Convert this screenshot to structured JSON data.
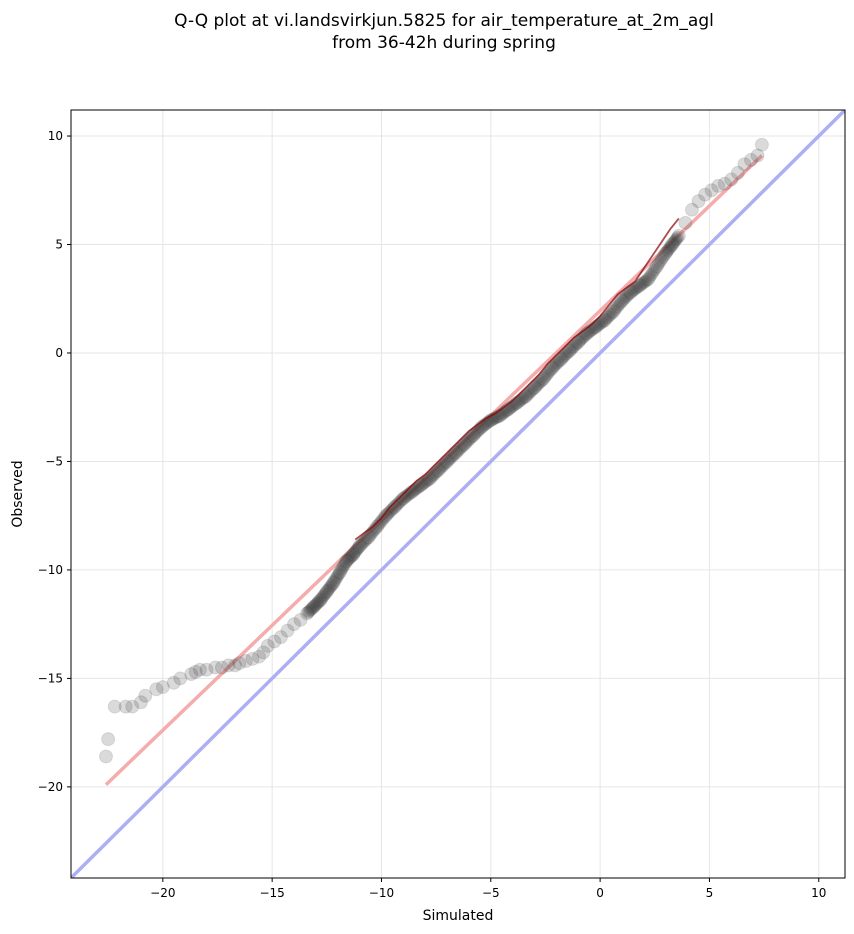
{
  "chart_data": {
    "type": "scatter",
    "title": "Q-Q plot at vi.landsvirkjun.5825 for air_temperature_at_2m_agl",
    "subtitle": "from 36-42h during spring",
    "xlabel": "Simulated",
    "ylabel": "Observed",
    "xlim": [
      -24.2,
      11.2
    ],
    "ylim": [
      -24.2,
      11.2
    ],
    "xticks": [
      -20,
      -15,
      -10,
      -5,
      0,
      5,
      10
    ],
    "yticks": [
      -20,
      -15,
      -10,
      -5,
      0,
      5,
      10
    ],
    "xtick_labels": [
      "−20",
      "−15",
      "−10",
      "−5",
      "0",
      "5",
      "10"
    ],
    "ytick_labels": [
      "−20",
      "−15",
      "−10",
      "−5",
      "0",
      "5",
      "10"
    ],
    "grid": true,
    "identity_line": {
      "from": [
        -24.2,
        -24.2
      ],
      "to": [
        11.2,
        11.2
      ],
      "color": "#aaaaf5"
    },
    "fit_line": {
      "from": [
        -22.6,
        -19.9
      ],
      "to": [
        7.4,
        9.1
      ],
      "color": "#f5a8a8"
    },
    "quantile_curve": {
      "x": [
        -11.2,
        -10.8,
        -10.4,
        -10.0,
        -9.6,
        -9.2,
        -8.8,
        -8.4,
        -8.0,
        -7.6,
        -7.2,
        -6.8,
        -6.4,
        -6.0,
        -5.6,
        -5.2,
        -4.8,
        -4.4,
        -4.0,
        -3.6,
        -3.2,
        -2.8,
        -2.4,
        -2.0,
        -1.6,
        -1.2,
        -0.8,
        -0.4,
        0.0,
        0.4,
        0.8,
        1.2,
        1.6,
        2.0,
        2.4,
        2.8,
        3.2,
        3.6
      ],
      "y": [
        -8.6,
        -8.3,
        -8.0,
        -7.6,
        -7.1,
        -6.7,
        -6.3,
        -5.9,
        -5.6,
        -5.2,
        -4.8,
        -4.4,
        -4.0,
        -3.6,
        -3.3,
        -3.0,
        -2.8,
        -2.5,
        -2.2,
        -1.8,
        -1.4,
        -1.0,
        -0.5,
        -0.1,
        0.3,
        0.7,
        1.0,
        1.3,
        1.7,
        2.2,
        2.7,
        3.0,
        3.3,
        3.9,
        4.5,
        5.1,
        5.7,
        6.2
      ],
      "color": "#8b0000"
    },
    "series": [
      {
        "x": [
          -22.6,
          -22.5,
          -22.2,
          -21.7,
          -21.4,
          -21.0,
          -20.8,
          -20.3,
          -20.0,
          -19.5,
          -19.2,
          -18.7,
          -18.5,
          -18.3,
          -18.0,
          -17.6,
          -17.3,
          -17.0,
          -16.7,
          -16.5,
          -16.2,
          -15.9,
          -15.6,
          -15.4,
          -15.2,
          -14.9,
          -14.6,
          -14.3,
          -14.0,
          -13.7,
          -13.4,
          -13.1,
          -12.8,
          -12.5,
          -12.2,
          -11.9,
          -11.6,
          -11.3,
          -11.0,
          -10.6,
          -10.2,
          -9.8,
          -9.4,
          -9.0,
          -8.6,
          -8.2,
          -7.8,
          -7.4,
          -7.0,
          -6.6,
          -6.2,
          -5.8,
          -5.4,
          -5.0,
          -4.6,
          -4.2,
          -3.8,
          -3.4,
          -3.0,
          -2.6,
          -2.2,
          -1.8,
          -1.4,
          -1.0,
          -0.6,
          -0.2,
          0.2,
          0.6,
          1.0,
          1.4,
          1.8,
          2.2,
          2.6,
          3.0,
          3.3,
          3.6,
          3.9,
          4.2,
          4.5,
          4.8,
          5.1,
          5.4,
          5.7,
          6.0,
          6.3,
          6.6,
          6.9,
          7.2,
          7.4
        ],
        "y": [
          -18.6,
          -17.8,
          -16.3,
          -16.3,
          -16.3,
          -16.1,
          -15.8,
          -15.5,
          -15.4,
          -15.2,
          -15.0,
          -14.8,
          -14.7,
          -14.6,
          -14.6,
          -14.5,
          -14.5,
          -14.4,
          -14.4,
          -14.3,
          -14.2,
          -14.1,
          -14.0,
          -13.8,
          -13.5,
          -13.3,
          -13.1,
          -12.8,
          -12.5,
          -12.3,
          -12.0,
          -11.7,
          -11.4,
          -11.0,
          -10.6,
          -10.1,
          -9.6,
          -9.3,
          -8.9,
          -8.5,
          -8.0,
          -7.5,
          -7.1,
          -6.7,
          -6.4,
          -6.1,
          -5.8,
          -5.4,
          -5.0,
          -4.6,
          -4.2,
          -3.8,
          -3.4,
          -3.1,
          -2.9,
          -2.6,
          -2.3,
          -2.0,
          -1.6,
          -1.2,
          -0.7,
          -0.3,
          0.1,
          0.5,
          0.9,
          1.2,
          1.5,
          1.9,
          2.4,
          2.8,
          3.1,
          3.4,
          4.0,
          4.6,
          5.0,
          5.4,
          6.0,
          6.6,
          7.0,
          7.3,
          7.5,
          7.7,
          7.8,
          8.0,
          8.3,
          8.7,
          8.9,
          9.1,
          9.6
        ],
        "color": "#333333"
      }
    ]
  }
}
